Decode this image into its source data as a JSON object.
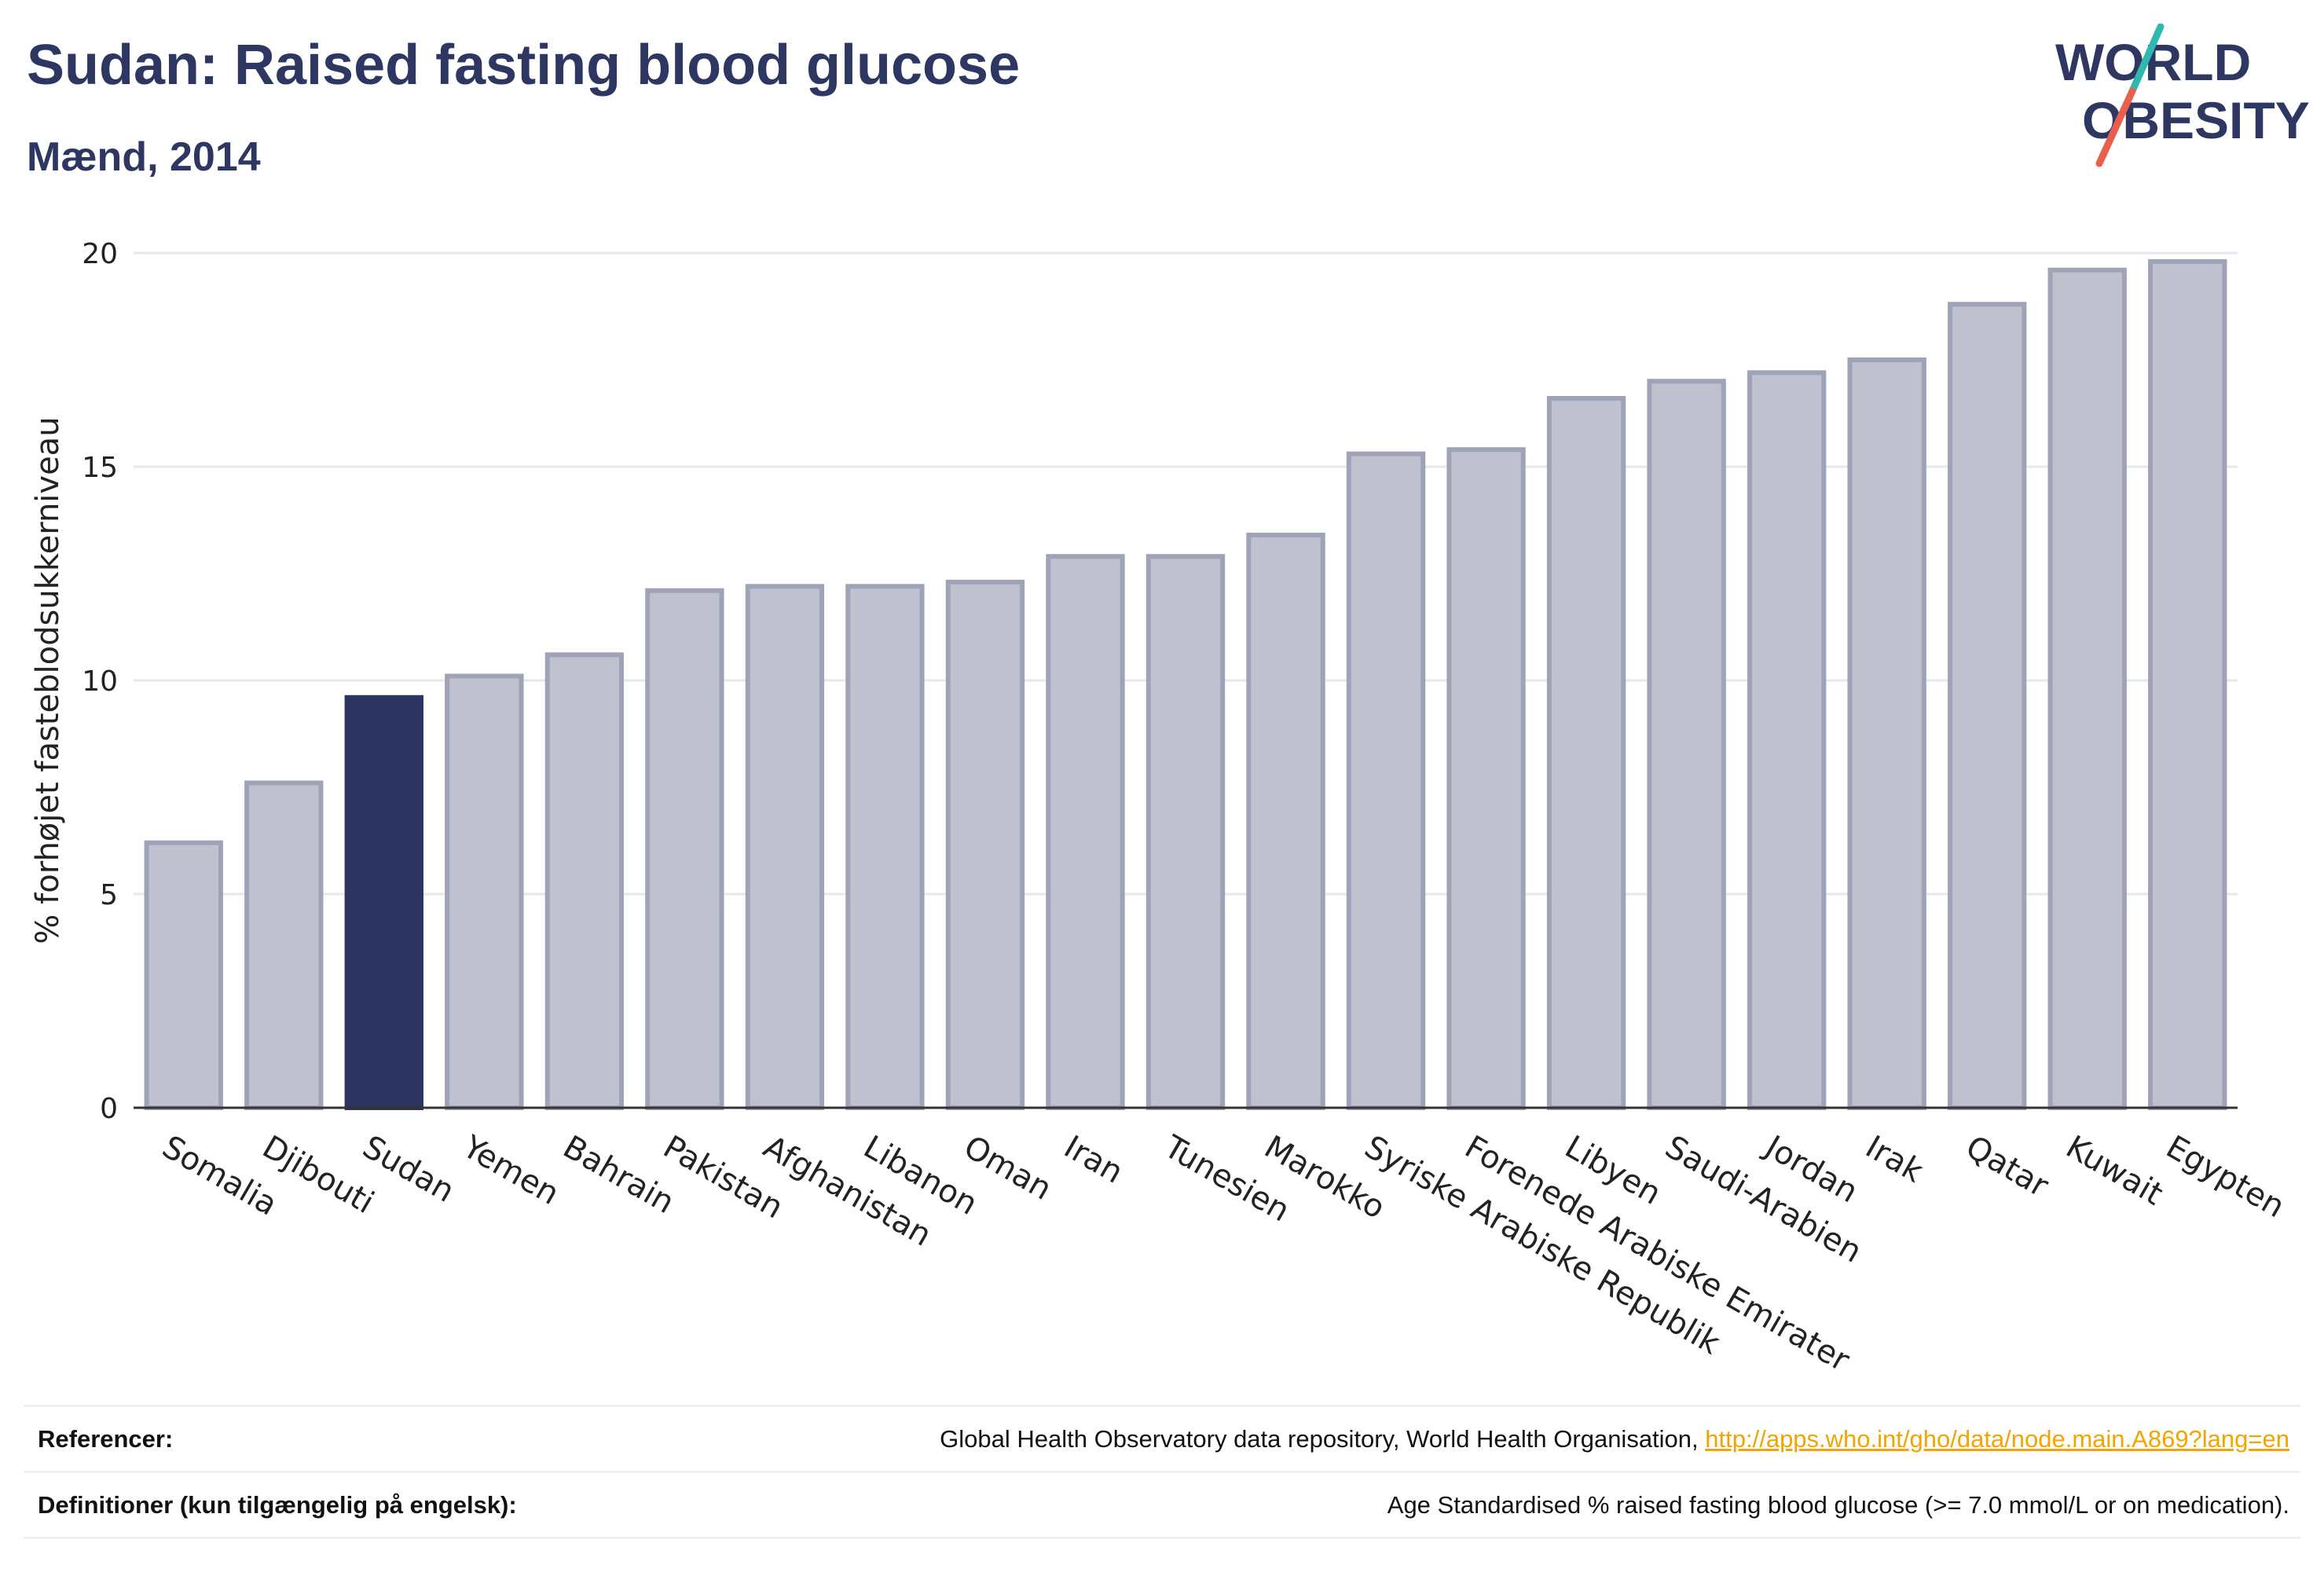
{
  "header": {
    "title": "Sudan: Raised fasting blood glucose",
    "subtitle": "Mænd, 2014"
  },
  "logo": {
    "line1": "WORLD",
    "line2": "OBESITY",
    "text_color": "#2d3761",
    "slash_color_top": "#2fb8b0",
    "slash_color_bottom": "#e8604c"
  },
  "chart_data": {
    "type": "bar",
    "ylabel": "% forhøjet fasteblodsukkerniveau",
    "xlabel": "",
    "ylim": [
      0,
      20
    ],
    "yticks": [
      0,
      5,
      10,
      15,
      20
    ],
    "grid": true,
    "highlight_category": "Sudan",
    "colors": {
      "bar_fill": "#bfc2ce",
      "bar_stroke": "#9ea3b8",
      "highlight_fill": "#2c3560",
      "grid": "#e6e8ef",
      "axis": "#333333"
    },
    "categories": [
      "Somalia",
      "Djibouti",
      "Sudan",
      "Yemen",
      "Bahrain",
      "Pakistan",
      "Afghanistan",
      "Libanon",
      "Oman",
      "Iran",
      "Tunesien",
      "Marokko",
      "Syriske Arabiske Republik",
      "Forenede Arabiske Emirater",
      "Libyen",
      "Saudi-Arabien",
      "Jordan",
      "Irak",
      "Qatar",
      "Kuwait",
      "Egypten"
    ],
    "values": [
      6.2,
      7.6,
      9.6,
      10.1,
      10.6,
      12.1,
      12.2,
      12.2,
      12.3,
      12.9,
      12.9,
      13.4,
      15.3,
      15.4,
      16.6,
      17.0,
      17.2,
      17.5,
      18.8,
      19.6,
      19.8
    ]
  },
  "footer": {
    "references_label": "Referencer:",
    "references_text": "Global Health Observatory data repository, World Health Organisation,",
    "references_link": "http://apps.who.int/gho/data/node.main.A869?lang=en",
    "definitions_label": "Definitioner (kun tilgængelig på engelsk):",
    "definitions_text": "Age Standardised % raised fasting blood glucose (>= 7.0 mmol/L or on medication)."
  }
}
